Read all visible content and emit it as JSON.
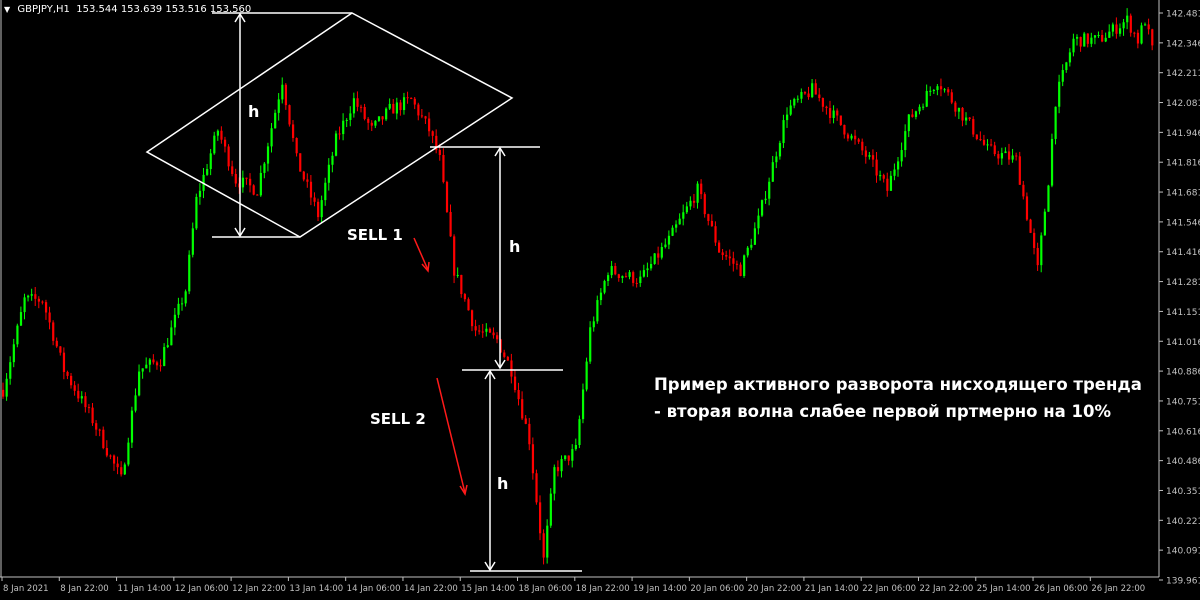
{
  "header": {
    "symbol": "GBPJPY,H1",
    "ohlc": "153.544 153.639 153.516 153.560"
  },
  "colors": {
    "background": "#000000",
    "bull": "#00ff00",
    "bear": "#ff0000",
    "axis": "#c0c0c0",
    "annotation": "#ffffff",
    "arrow": "#ff0000"
  },
  "annotations": {
    "h1": "h",
    "h2": "h",
    "h3": "h",
    "sell1": "SELL 1",
    "sell2": "SELL 2",
    "note_line1": "Пример активного разворота нисходящего тренда",
    "note_line2": "- вторая волна слабее первой пртмерно на 10%"
  },
  "chart_data": {
    "type": "candlestick",
    "timeframe": "H1",
    "ylim": [
      139.961,
      142.481
    ],
    "y_ticks": [
      "142.481",
      "142.346",
      "142.211",
      "142.081",
      "141.946",
      "141.816",
      "141.681",
      "141.546",
      "141.416",
      "141.281",
      "141.151",
      "141.016",
      "140.886",
      "140.751",
      "140.616",
      "140.486",
      "140.351",
      "140.221",
      "140.091",
      "139.961"
    ],
    "x_ticks": [
      "8 Jan 2021",
      "8 Jan 22:00",
      "11 Jan 14:00",
      "12 Jan 06:00",
      "12 Jan 22:00",
      "13 Jan 14:00",
      "14 Jan 06:00",
      "14 Jan 22:00",
      "15 Jan 14:00",
      "18 Jan 06:00",
      "18 Jan 22:00",
      "19 Jan 14:00",
      "20 Jan 06:00",
      "20 Jan 22:00",
      "21 Jan 14:00",
      "22 Jan 06:00",
      "22 Jan 22:00",
      "25 Jan 14:00",
      "26 Jan 06:00",
      "26 Jan 22:00"
    ],
    "bars_per_tick": 16,
    "approx_close_path": [
      [
        0,
        140.806
      ],
      [
        6,
        141.206
      ],
      [
        11,
        141.206
      ],
      [
        17,
        140.895
      ],
      [
        25,
        140.673
      ],
      [
        33,
        140.406
      ],
      [
        38,
        140.895
      ],
      [
        44,
        140.939
      ],
      [
        51,
        141.25
      ],
      [
        54,
        141.65
      ],
      [
        60,
        141.961
      ],
      [
        65,
        141.739
      ],
      [
        71,
        141.694
      ],
      [
        78,
        142.183
      ],
      [
        82,
        141.828
      ],
      [
        88,
        141.583
      ],
      [
        93,
        141.917
      ],
      [
        98,
        142.094
      ],
      [
        103,
        141.961
      ],
      [
        108,
        142.05
      ],
      [
        114,
        142.094
      ],
      [
        119,
        141.961
      ],
      [
        122,
        141.828
      ],
      [
        126,
        141.339
      ],
      [
        132,
        141.072
      ],
      [
        138,
        141.028
      ],
      [
        142,
        140.895
      ],
      [
        147,
        140.584
      ],
      [
        151,
        140.05
      ],
      [
        154,
        140.45
      ],
      [
        160,
        140.539
      ],
      [
        164,
        141.072
      ],
      [
        169,
        141.339
      ],
      [
        178,
        141.294
      ],
      [
        186,
        141.472
      ],
      [
        194,
        141.694
      ],
      [
        200,
        141.428
      ],
      [
        206,
        141.339
      ],
      [
        211,
        141.561
      ],
      [
        219,
        142.05
      ],
      [
        226,
        142.139
      ],
      [
        233,
        142.005
      ],
      [
        242,
        141.828
      ],
      [
        247,
        141.694
      ],
      [
        253,
        142.005
      ],
      [
        261,
        142.183
      ],
      [
        267,
        142.05
      ],
      [
        275,
        141.872
      ],
      [
        283,
        141.828
      ],
      [
        289,
        141.339
      ],
      [
        292,
        141.739
      ],
      [
        294,
        142.094
      ],
      [
        299,
        142.361
      ],
      [
        306,
        142.361
      ],
      [
        314,
        142.45
      ],
      [
        317,
        142.361
      ],
      [
        319,
        142.45
      ],
      [
        321,
        142.317
      ]
    ]
  }
}
